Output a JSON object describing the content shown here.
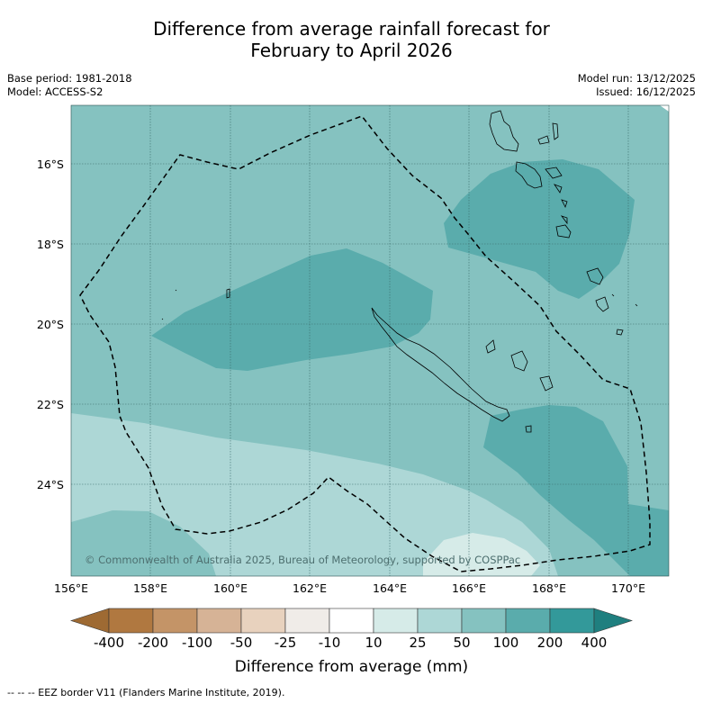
{
  "title": {
    "line1": "Difference from average rainfall forecast for",
    "line2": "February to April 2026"
  },
  "meta": {
    "base_period": "Base period: 1981-2018",
    "model": "Model: ACCESS-S2",
    "model_run": "Model run: 13/12/2025",
    "issued": "Issued: 16/12/2025"
  },
  "map": {
    "lat_labels": [
      "16°S",
      "18°S",
      "20°S",
      "22°S",
      "24°S"
    ],
    "lon_labels": [
      "156°E",
      "158°E",
      "160°E",
      "162°E",
      "164°E",
      "166°E",
      "168°E",
      "170°E"
    ],
    "copyright": "© Commonwealth of Australia 2025, Bureau of Meteorology, supported by COSPPac",
    "eez_color": "#000000"
  },
  "colorbar": {
    "title": "Difference from average (mm)",
    "labels": [
      "-400",
      "-200",
      "-100",
      "-50",
      "-25",
      "-10",
      "10",
      "25",
      "50",
      "100",
      "200",
      "400"
    ],
    "colors": [
      "#9e6a33",
      "#b07840",
      "#c49467",
      "#d6b396",
      "#e8d2be",
      "#f0ece8",
      "#ffffff",
      "#d6ebe8",
      "#add7d6",
      "#85c2c0",
      "#5aacac",
      "#33999a",
      "#1f7f7f"
    ]
  },
  "footer": "--  --  -- EEZ border V11 (Flanders Marine Institute, 2019)."
}
